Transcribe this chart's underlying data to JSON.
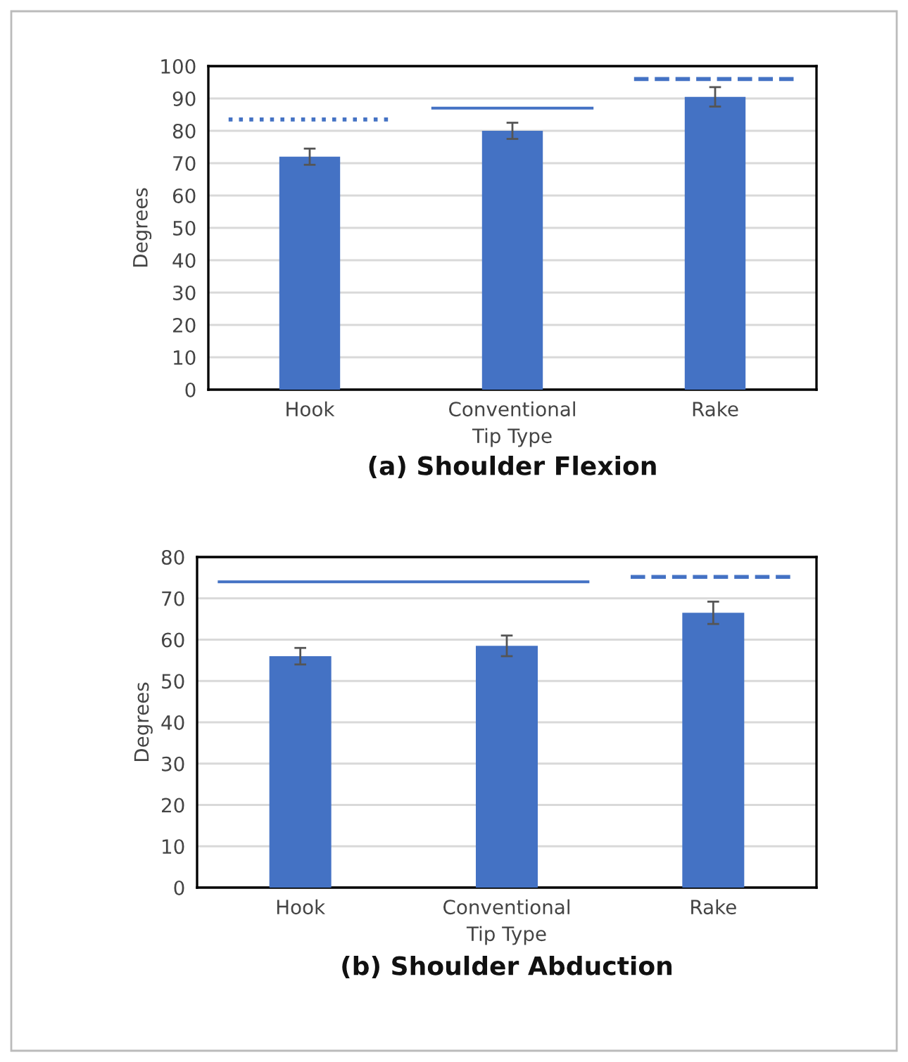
{
  "chart_data": [
    {
      "type": "bar",
      "title": "(a) Shoulder Flexion",
      "xlabel": "Tip Type",
      "ylabel": "Degrees",
      "categories": [
        "Hook",
        "Conventional",
        "Rake"
      ],
      "values": [
        72,
        80,
        90.5
      ],
      "errors": [
        2.5,
        2.5,
        3
      ],
      "color": "#4472c4",
      "ylim": [
        0,
        100
      ],
      "yticks": [
        0,
        10,
        20,
        30,
        40,
        50,
        60,
        70,
        80,
        90,
        100
      ],
      "grid": "y"
    },
    {
      "type": "bar",
      "title": "(b) Shoulder Abduction",
      "xlabel": "Tip Type",
      "ylabel": "Degrees",
      "categories": [
        "Hook",
        "Conventional",
        "Rake"
      ],
      "values": [
        56,
        58.5,
        66.5
      ],
      "errors": [
        2,
        2.5,
        2.7
      ],
      "color": "#4472c4",
      "ylim": [
        0,
        80
      ],
      "yticks": [
        0,
        10,
        20,
        30,
        40,
        50,
        60,
        70,
        80
      ],
      "grid": "y"
    }
  ]
}
